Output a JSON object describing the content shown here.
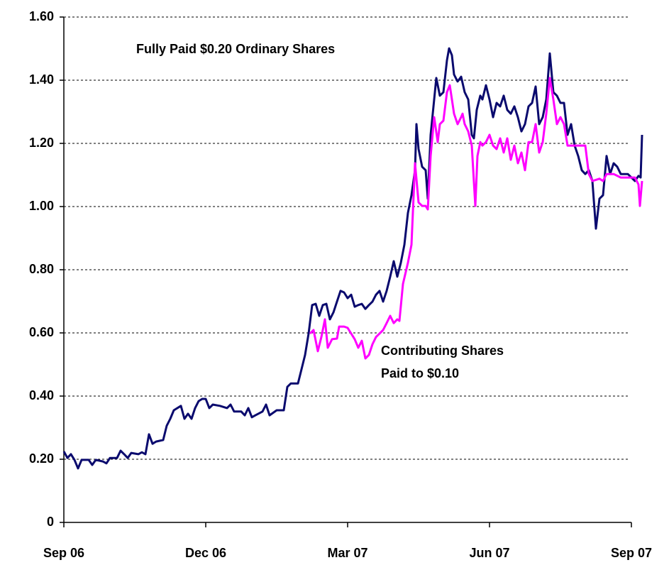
{
  "chart_data": {
    "type": "line",
    "annotations": [
      {
        "text": "Fully Paid $0.20 Ordinary Shares"
      },
      {
        "lines": [
          "Contributing Shares",
          "Paid to $0.10"
        ]
      }
    ],
    "xlim": [
      0,
      12
    ],
    "xticks": [
      {
        "value": 0,
        "label": "Sep 06"
      },
      {
        "value": 3,
        "label": "Dec 06"
      },
      {
        "value": 6,
        "label": "Mar 07"
      },
      {
        "value": 9,
        "label": "Jun 07"
      },
      {
        "value": 12,
        "label": "Sep 07"
      }
    ],
    "ylim": [
      0,
      1.6
    ],
    "yticks": [
      0,
      {
        "value": 0.2,
        "label": "0.20"
      },
      {
        "value": 0.4,
        "label": "0.40"
      },
      {
        "value": 0.6,
        "label": "0.60"
      },
      {
        "value": 0.8,
        "label": "0.80"
      },
      {
        "value": 1.0,
        "label": "1.00"
      },
      {
        "value": 1.2,
        "label": "1.20"
      },
      {
        "value": 1.4,
        "label": "1.40"
      },
      {
        "value": 1.6,
        "label": "1.60"
      }
    ],
    "grid": true,
    "series": [
      {
        "name": "Fully Paid $0.20 Ordinary Shares",
        "color": "#0a0a6e",
        "x": [
          0,
          0.075,
          0.15,
          0.225,
          0.3,
          0.375,
          0.525,
          0.6,
          0.675,
          0.825,
          0.9,
          0.975,
          1.125,
          1.2,
          1.275,
          1.35,
          1.425,
          1.575,
          1.65,
          1.725,
          1.8,
          1.875,
          1.95,
          2.1,
          2.175,
          2.25,
          2.325,
          2.475,
          2.55,
          2.625,
          2.7,
          2.775,
          2.85,
          2.925,
          3,
          3.075,
          3.15,
          3.3,
          3.45,
          3.525,
          3.6,
          3.75,
          3.825,
          3.9,
          3.975,
          4.05,
          4.2,
          4.275,
          4.35,
          4.5,
          4.65,
          4.725,
          4.8,
          4.95,
          5.025,
          5.1,
          5.175,
          5.25,
          5.325,
          5.4,
          5.475,
          5.55,
          5.625,
          5.7,
          5.775,
          5.85,
          5.925,
          6,
          6.075,
          6.15,
          6.225,
          6.3,
          6.375,
          6.45,
          6.525,
          6.6,
          6.675,
          6.75,
          6.825,
          6.9,
          6.975,
          7.05,
          7.125,
          7.2,
          7.275,
          7.35,
          7.425,
          7.455,
          7.5,
          7.575,
          7.65,
          7.695,
          7.755,
          7.8,
          7.875,
          7.95,
          8.025,
          8.1,
          8.145,
          8.205,
          8.25,
          8.325,
          8.4,
          8.475,
          8.55,
          8.625,
          8.67,
          8.73,
          8.805,
          8.85,
          8.925,
          9,
          9.075,
          9.15,
          9.225,
          9.3,
          9.375,
          9.45,
          9.525,
          9.6,
          9.675,
          9.75,
          9.825,
          9.9,
          9.975,
          10.05,
          10.125,
          10.2,
          10.275,
          10.35,
          10.425,
          10.5,
          10.575,
          10.65,
          10.725,
          10.8,
          10.875,
          10.95,
          11.025,
          11.1,
          11.175,
          11.25,
          11.325,
          11.4,
          11.475,
          11.55,
          11.625,
          11.7,
          11.775,
          11.85,
          11.925,
          12,
          12.075,
          12.15,
          12.195,
          12.225
        ],
        "values": [
          0.225,
          0.204,
          0.216,
          0.198,
          0.171,
          0.198,
          0.198,
          0.182,
          0.198,
          0.193,
          0.187,
          0.204,
          0.204,
          0.227,
          0.216,
          0.204,
          0.22,
          0.216,
          0.222,
          0.216,
          0.279,
          0.249,
          0.256,
          0.261,
          0.306,
          0.328,
          0.355,
          0.369,
          0.328,
          0.344,
          0.328,
          0.362,
          0.384,
          0.391,
          0.391,
          0.362,
          0.373,
          0.369,
          0.362,
          0.373,
          0.351,
          0.351,
          0.339,
          0.362,
          0.333,
          0.339,
          0.351,
          0.373,
          0.339,
          0.355,
          0.355,
          0.429,
          0.44,
          0.44,
          0.485,
          0.53,
          0.598,
          0.688,
          0.692,
          0.654,
          0.688,
          0.692,
          0.643,
          0.665,
          0.699,
          0.733,
          0.728,
          0.71,
          0.721,
          0.683,
          0.688,
          0.692,
          0.676,
          0.688,
          0.699,
          0.721,
          0.733,
          0.699,
          0.733,
          0.778,
          0.827,
          0.778,
          0.822,
          0.879,
          0.98,
          1.036,
          1.115,
          1.261,
          1.182,
          1.126,
          1.115,
          1.025,
          1.227,
          1.294,
          1.407,
          1.351,
          1.362,
          1.463,
          1.501,
          1.479,
          1.418,
          1.396,
          1.411,
          1.362,
          1.339,
          1.227,
          1.216,
          1.306,
          1.351,
          1.339,
          1.384,
          1.339,
          1.283,
          1.328,
          1.317,
          1.351,
          1.306,
          1.294,
          1.317,
          1.283,
          1.238,
          1.261,
          1.317,
          1.328,
          1.38,
          1.261,
          1.283,
          1.339,
          1.485,
          1.362,
          1.351,
          1.328,
          1.328,
          1.227,
          1.261,
          1.193,
          1.16,
          1.115,
          1.103,
          1.115,
          1.081,
          0.93,
          1.025,
          1.036,
          1.16,
          1.103,
          1.137,
          1.126,
          1.103,
          1.103,
          1.103,
          1.092,
          1.081,
          1.097,
          1.092,
          1.227
        ]
      },
      {
        "name": "Contributing Shares Paid to $0.10",
        "color": "#ff00ff",
        "x": [
          5.205,
          5.28,
          5.37,
          5.445,
          5.52,
          5.58,
          5.67,
          5.775,
          5.82,
          5.925,
          6,
          6.075,
          6.15,
          6.225,
          6.3,
          6.375,
          6.45,
          6.525,
          6.6,
          6.675,
          6.75,
          6.825,
          6.9,
          6.975,
          7.05,
          7.095,
          7.17,
          7.275,
          7.35,
          7.425,
          7.5,
          7.575,
          7.65,
          7.695,
          7.755,
          7.83,
          7.905,
          7.95,
          8.025,
          8.1,
          8.16,
          8.205,
          8.25,
          8.325,
          8.4,
          8.43,
          8.475,
          8.55,
          8.625,
          8.7,
          8.745,
          8.805,
          8.85,
          8.925,
          9,
          9.075,
          9.15,
          9.225,
          9.3,
          9.375,
          9.45,
          9.525,
          9.6,
          9.675,
          9.75,
          9.825,
          9.9,
          9.975,
          10.05,
          10.125,
          10.2,
          10.275,
          10.35,
          10.425,
          10.5,
          10.575,
          10.65,
          11.025,
          11.1,
          11.175,
          11.325,
          11.4,
          11.475,
          11.625,
          11.775,
          12.075,
          12.15,
          12.18,
          12.225
        ],
        "values": [
          0.598,
          0.609,
          0.542,
          0.587,
          0.643,
          0.553,
          0.58,
          0.582,
          0.62,
          0.62,
          0.616,
          0.598,
          0.58,
          0.553,
          0.575,
          0.519,
          0.53,
          0.564,
          0.587,
          0.598,
          0.609,
          0.631,
          0.654,
          0.631,
          0.643,
          0.638,
          0.755,
          0.822,
          0.879,
          1.137,
          1.013,
          1.002,
          1.002,
          0.991,
          1.16,
          1.283,
          1.204,
          1.261,
          1.272,
          1.362,
          1.384,
          1.339,
          1.294,
          1.261,
          1.283,
          1.294,
          1.261,
          1.238,
          1.193,
          1.002,
          1.16,
          1.204,
          1.193,
          1.204,
          1.227,
          1.193,
          1.182,
          1.216,
          1.171,
          1.216,
          1.148,
          1.193,
          1.137,
          1.171,
          1.115,
          1.204,
          1.204,
          1.261,
          1.171,
          1.204,
          1.294,
          1.407,
          1.339,
          1.261,
          1.283,
          1.261,
          1.193,
          1.193,
          1.103,
          1.081,
          1.088,
          1.081,
          1.103,
          1.103,
          1.092,
          1.092,
          1.07,
          1.002,
          1.081
        ]
      }
    ]
  }
}
